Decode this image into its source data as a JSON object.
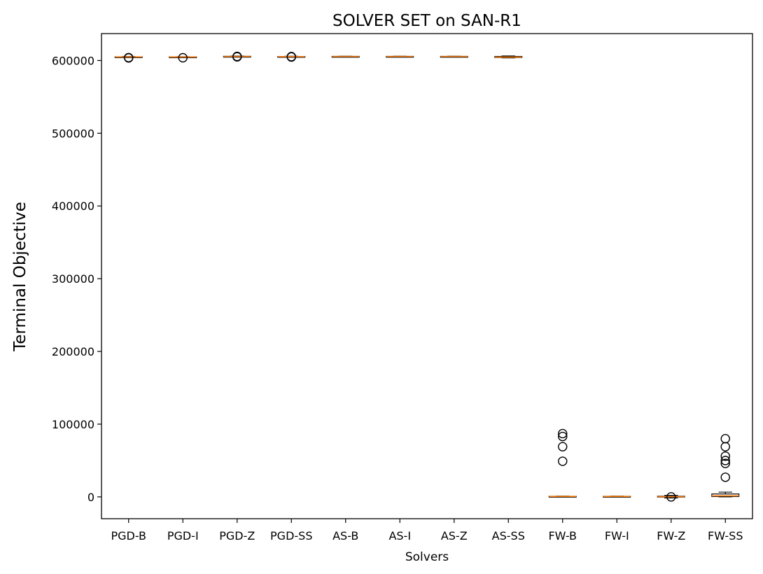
{
  "chart_data": {
    "type": "box",
    "title": "SOLVER SET on SAN-R1",
    "xlabel": "Solvers",
    "ylabel": "Terminal Objective",
    "ylim": [
      -30000,
      637000
    ],
    "yticks": [
      0,
      100000,
      200000,
      300000,
      400000,
      500000,
      600000
    ],
    "grid": false,
    "categories": [
      "PGD-B",
      "PGD-I",
      "PGD-Z",
      "PGD-SS",
      "AS-B",
      "AS-I",
      "AS-Z",
      "AS-SS",
      "FW-B",
      "FW-I",
      "FW-Z",
      "FW-SS"
    ],
    "boxes": [
      {
        "name": "PGD-B",
        "whislo": 604500,
        "q1": 604800,
        "med": 605000,
        "q3": 605200,
        "whishi": 605500,
        "fliers": [
          603500,
          604000
        ]
      },
      {
        "name": "PGD-I",
        "whislo": 604200,
        "q1": 604600,
        "med": 604800,
        "q3": 605000,
        "whishi": 605300,
        "fliers": [
          603800
        ]
      },
      {
        "name": "PGD-Z",
        "whislo": 605000,
        "q1": 605400,
        "med": 605600,
        "q3": 605800,
        "whishi": 606100,
        "fliers": [
          605000,
          605600
        ]
      },
      {
        "name": "PGD-SS",
        "whislo": 604800,
        "q1": 605200,
        "med": 605400,
        "q3": 605600,
        "whishi": 605900,
        "fliers": [
          604800,
          605400
        ]
      },
      {
        "name": "AS-B",
        "whislo": 605300,
        "q1": 605500,
        "med": 605600,
        "q3": 605700,
        "whishi": 605900,
        "fliers": []
      },
      {
        "name": "AS-I",
        "whislo": 605300,
        "q1": 605500,
        "med": 605600,
        "q3": 605700,
        "whishi": 605900,
        "fliers": []
      },
      {
        "name": "AS-Z",
        "whislo": 605300,
        "q1": 605500,
        "med": 605600,
        "q3": 605700,
        "whishi": 605900,
        "fliers": []
      },
      {
        "name": "AS-SS",
        "whislo": 603700,
        "q1": 604100,
        "med": 604700,
        "q3": 605600,
        "whishi": 606200,
        "fliers": []
      },
      {
        "name": "FW-B",
        "whislo": 200,
        "q1": 400,
        "med": 600,
        "q3": 800,
        "whishi": 1100,
        "fliers": [
          49000,
          69000,
          83000,
          87000
        ]
      },
      {
        "name": "FW-I",
        "whislo": 200,
        "q1": 400,
        "med": 600,
        "q3": 800,
        "whishi": 1100,
        "fliers": []
      },
      {
        "name": "FW-Z",
        "whislo": -1500,
        "q1": -300,
        "med": 300,
        "q3": 900,
        "whishi": 2000,
        "fliers": [
          0
        ]
      },
      {
        "name": "FW-SS",
        "whislo": 0,
        "q1": 500,
        "med": 1500,
        "q3": 4000,
        "whishi": 6500,
        "fliers": [
          27000,
          46000,
          50000,
          56000,
          69000,
          80000
        ]
      }
    ],
    "colors": {
      "box": "#000000",
      "median": "#ff7f0e",
      "flier": "#000000",
      "background": "#ffffff"
    }
  }
}
